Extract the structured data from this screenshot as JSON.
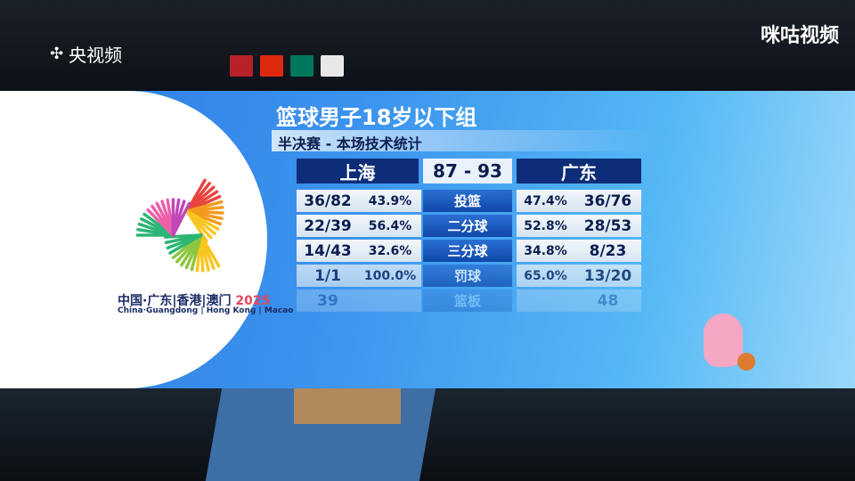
{
  "broadcaster_left": "央视频",
  "broadcaster_right": "咪咕视频",
  "logo": {
    "line1": "中国·广东|香港|澳门",
    "year": "2025",
    "line2": "China·Guangdong | Hong Kong | Macao"
  },
  "title": "篮球男子18岁以下组",
  "subtitle": "半决赛 - 本场技术统计",
  "home": {
    "team": "上海"
  },
  "away": {
    "team": "广东"
  },
  "score": "87 - 93",
  "rows": [
    {
      "label": "投篮",
      "home_made": "36/82",
      "home_pct": "43.9%",
      "away_pct": "47.4%",
      "away_made": "36/76"
    },
    {
      "label": "二分球",
      "home_made": "22/39",
      "home_pct": "56.4%",
      "away_pct": "52.8%",
      "away_made": "28/53"
    },
    {
      "label": "三分球",
      "home_made": "14/43",
      "home_pct": "32.6%",
      "away_pct": "34.8%",
      "away_made": "8/23"
    },
    {
      "label": "罚球",
      "home_made": "1/1",
      "home_pct": "100.0%",
      "away_pct": "65.0%",
      "away_made": "13/20"
    },
    {
      "label": "篮板",
      "home_made": "39",
      "away_made": "48"
    }
  ],
  "colors": {
    "panel": "#3b93ee",
    "team_bar": "#0e2d78",
    "label_bar": "#0f48a8"
  }
}
